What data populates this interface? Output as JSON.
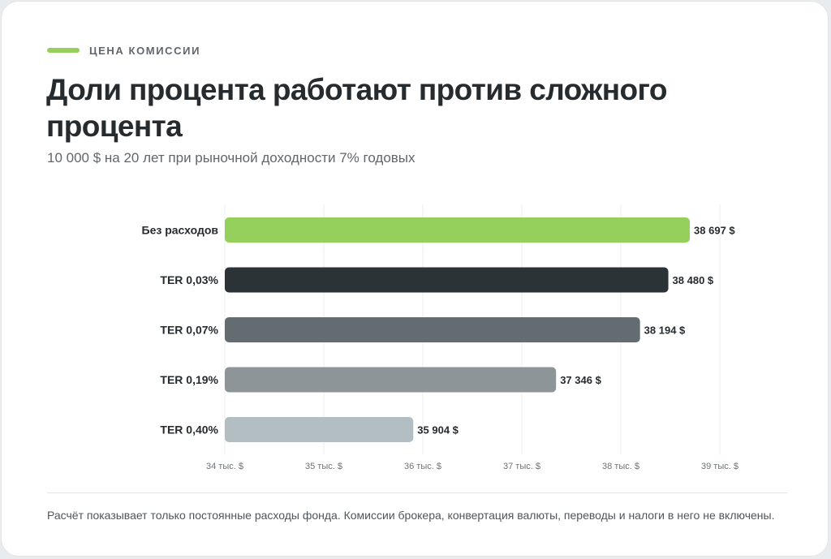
{
  "header": {
    "eyebrow": "ЦЕНА КОМИССИИ",
    "title": "Доли процента работают против сложного процента",
    "subtitle": "10 000 $ на 20 лет при рыночной доходности 7% годовых"
  },
  "footnote": "Расчёт показывает только постоянные расходы фонда. Комиссии брокера, конвертация валюты, переводы и налоги в него не включены.",
  "colors": {
    "accent": "#95cf5c",
    "bars": [
      "#95cf5c",
      "#2c3336",
      "#626c71",
      "#8d9598",
      "#b3bec3"
    ],
    "grid": "#eceeef",
    "text": "#252b2e"
  },
  "chart_data": {
    "type": "bar",
    "orientation": "horizontal",
    "categories": [
      "Без расходов",
      "TER 0,03%",
      "TER 0,07%",
      "TER 0,19%",
      "TER 0,40%"
    ],
    "values": [
      38697,
      38480,
      38194,
      37346,
      35904
    ],
    "value_labels": [
      "38 697 $",
      "38 480 $",
      "38 194 $",
      "37 346 $",
      "35 904 $"
    ],
    "xlim": [
      34000,
      39000
    ],
    "xticks": [
      34000,
      35000,
      36000,
      37000,
      38000,
      39000
    ],
    "xtick_labels": [
      "34 тыс. $",
      "35 тыс. $",
      "36 тыс. $",
      "37 тыс. $",
      "38 тыс. $",
      "39 тыс. $"
    ],
    "grid": true,
    "legend": "none"
  }
}
